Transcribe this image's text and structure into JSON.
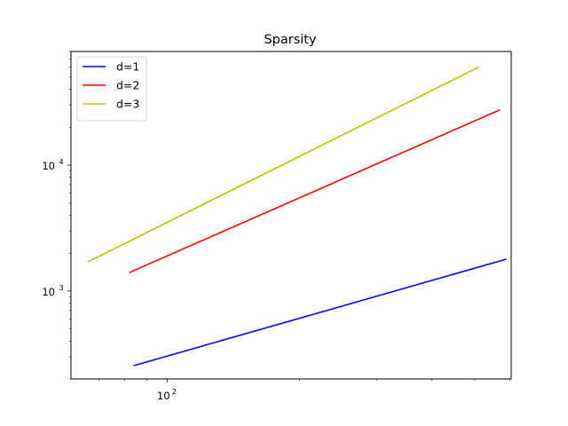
{
  "chart_data": {
    "type": "line",
    "title": "Sparsity",
    "xlabel": "",
    "ylabel": "",
    "xscale": "log",
    "yscale": "log",
    "xlim": [
      60.5,
      605
    ],
    "ylim": [
      200,
      80000
    ],
    "xticks": [
      {
        "value": 100,
        "base": "10",
        "exp": "2"
      }
    ],
    "yticks": [
      {
        "value": 1000,
        "base": "10",
        "exp": "3"
      },
      {
        "value": 10000,
        "base": "10",
        "exp": "4"
      }
    ],
    "grid": false,
    "legend_position": "upper-left",
    "series": [
      {
        "name": "d=1",
        "color": "#0000ff",
        "x": [
          84,
          590
        ],
        "y": [
          255,
          1790
        ]
      },
      {
        "name": "d=2",
        "color": "#ff0000",
        "x": [
          82,
          570
        ],
        "y": [
          1400,
          27500
        ]
      },
      {
        "name": "d=3",
        "color": "#bfbf00",
        "x": [
          66,
          510
        ],
        "y": [
          1700,
          60000
        ]
      }
    ]
  }
}
